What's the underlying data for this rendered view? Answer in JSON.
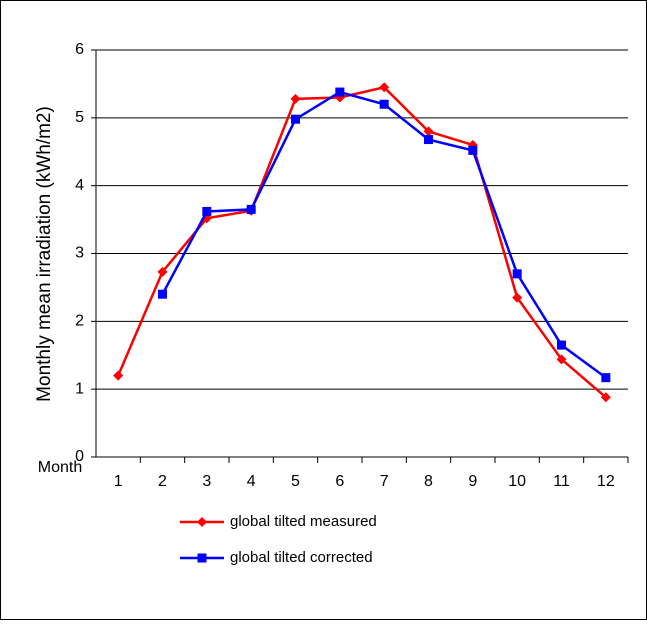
{
  "chart_data": {
    "type": "line",
    "x_label": "Month",
    "y_label": "Monthly mean irradiation (kWh/m2)",
    "categories": [
      "1",
      "2",
      "3",
      "4",
      "5",
      "6",
      "7",
      "8",
      "9",
      "10",
      "11",
      "12"
    ],
    "series": [
      {
        "name": "global tilted measured",
        "color": "#ff0000",
        "marker": "diamond",
        "values": [
          1.2,
          2.73,
          3.52,
          3.63,
          5.28,
          5.3,
          5.45,
          4.8,
          4.6,
          2.35,
          1.44,
          0.88
        ]
      },
      {
        "name": "global tilted corrected",
        "color": "#0000ff",
        "marker": "square",
        "values": [
          null,
          2.4,
          3.62,
          3.65,
          4.98,
          5.38,
          5.2,
          4.68,
          4.52,
          2.7,
          1.65,
          1.17
        ]
      }
    ],
    "ylim": [
      0,
      6
    ],
    "yticks": [
      0,
      1,
      2,
      3,
      4,
      5,
      6
    ],
    "grid": true
  }
}
